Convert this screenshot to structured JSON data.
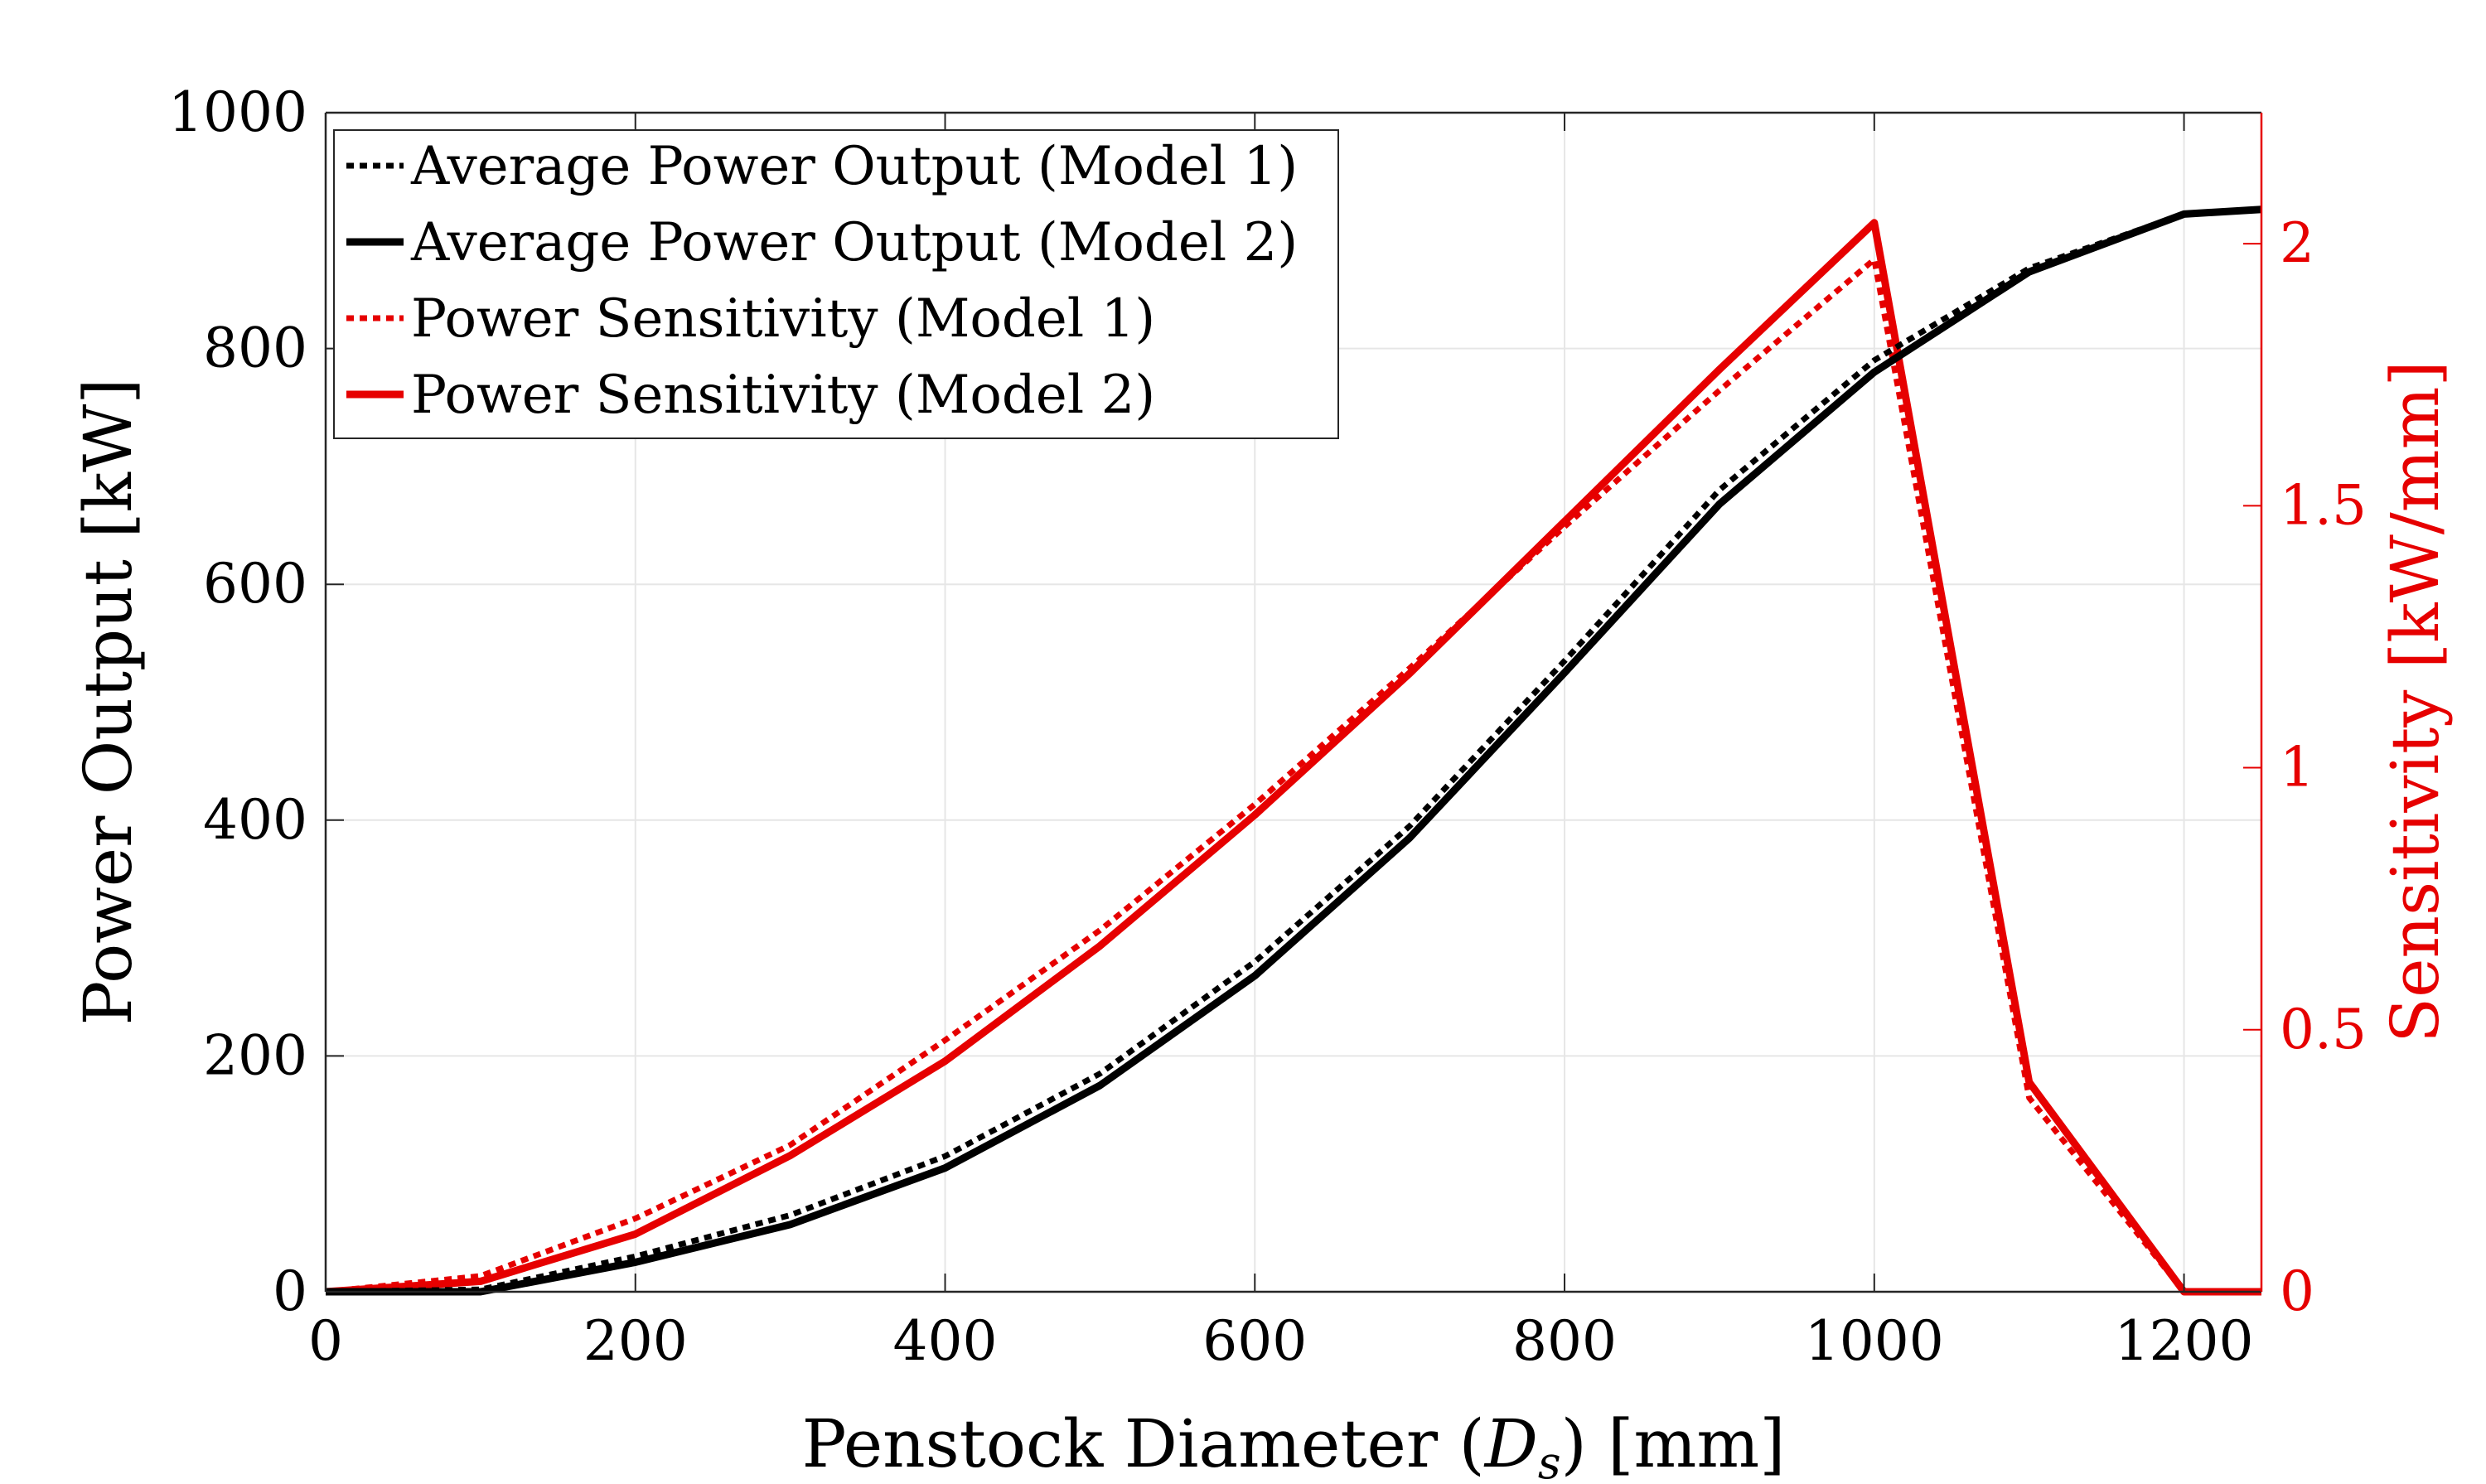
{
  "chart_data": {
    "type": "line",
    "xlabel": "Penstock Diameter (",
    "xlabel_symbol": "D",
    "xlabel_subscript": "s",
    "xlabel_unit": ") [mm]",
    "ylabel_left": "Power Output [kW]",
    "ylabel_right": "Sensitivity [kW/mm]",
    "xlim": [
      0,
      1250
    ],
    "ylim_left": [
      0,
      1000
    ],
    "ylim_right": [
      0,
      2.25
    ],
    "x_ticks": [
      "0",
      "200",
      "400",
      "600",
      "800",
      "1000",
      "1200"
    ],
    "y_left_ticks": [
      "0",
      "200",
      "400",
      "600",
      "800",
      "1000"
    ],
    "y_right_ticks": [
      "0",
      "0.5",
      "1",
      "1.5",
      "2"
    ],
    "grid": true,
    "legend_position": "top-left",
    "colors": {
      "black": "#000000",
      "red": "#e60000",
      "grid": "#e6e6e6",
      "axis": "#262626"
    },
    "series": [
      {
        "name": "Average Power Output (Model 1)",
        "axis": "left",
        "color": "#000000",
        "style": "dotted",
        "x": [
          0,
          100,
          200,
          300,
          400,
          500,
          600,
          700,
          800,
          900,
          1000,
          1100,
          1200,
          1250
        ],
        "y": [
          0,
          2,
          30,
          65,
          115,
          185,
          280,
          395,
          535,
          680,
          790,
          868,
          914,
          918
        ]
      },
      {
        "name": "Average Power Output (Model 2)",
        "axis": "left",
        "color": "#000000",
        "style": "solid",
        "x": [
          0,
          100,
          200,
          300,
          400,
          500,
          600,
          700,
          800,
          900,
          1000,
          1100,
          1200,
          1250
        ],
        "y": [
          0,
          0,
          25,
          57,
          105,
          175,
          268,
          385,
          525,
          668,
          780,
          865,
          914,
          918
        ]
      },
      {
        "name": "Power Sensitivity (Model 1)",
        "axis": "right",
        "color": "#e60000",
        "style": "dotted",
        "x": [
          0,
          100,
          200,
          300,
          400,
          500,
          600,
          700,
          800,
          900,
          1000,
          1100,
          1200,
          1250
        ],
        "y": [
          0,
          0.03,
          0.14,
          0.28,
          0.48,
          0.69,
          0.93,
          1.19,
          1.46,
          1.72,
          1.97,
          0.37,
          0,
          0
        ]
      },
      {
        "name": "Power Sensitivity (Model 2)",
        "axis": "right",
        "color": "#e60000",
        "style": "solid",
        "x": [
          0,
          100,
          200,
          300,
          400,
          500,
          600,
          700,
          800,
          900,
          1000,
          1100,
          1200,
          1250
        ],
        "y": [
          0,
          0.02,
          0.11,
          0.26,
          0.44,
          0.66,
          0.91,
          1.18,
          1.47,
          1.76,
          2.04,
          0.4,
          0,
          0
        ]
      }
    ]
  }
}
